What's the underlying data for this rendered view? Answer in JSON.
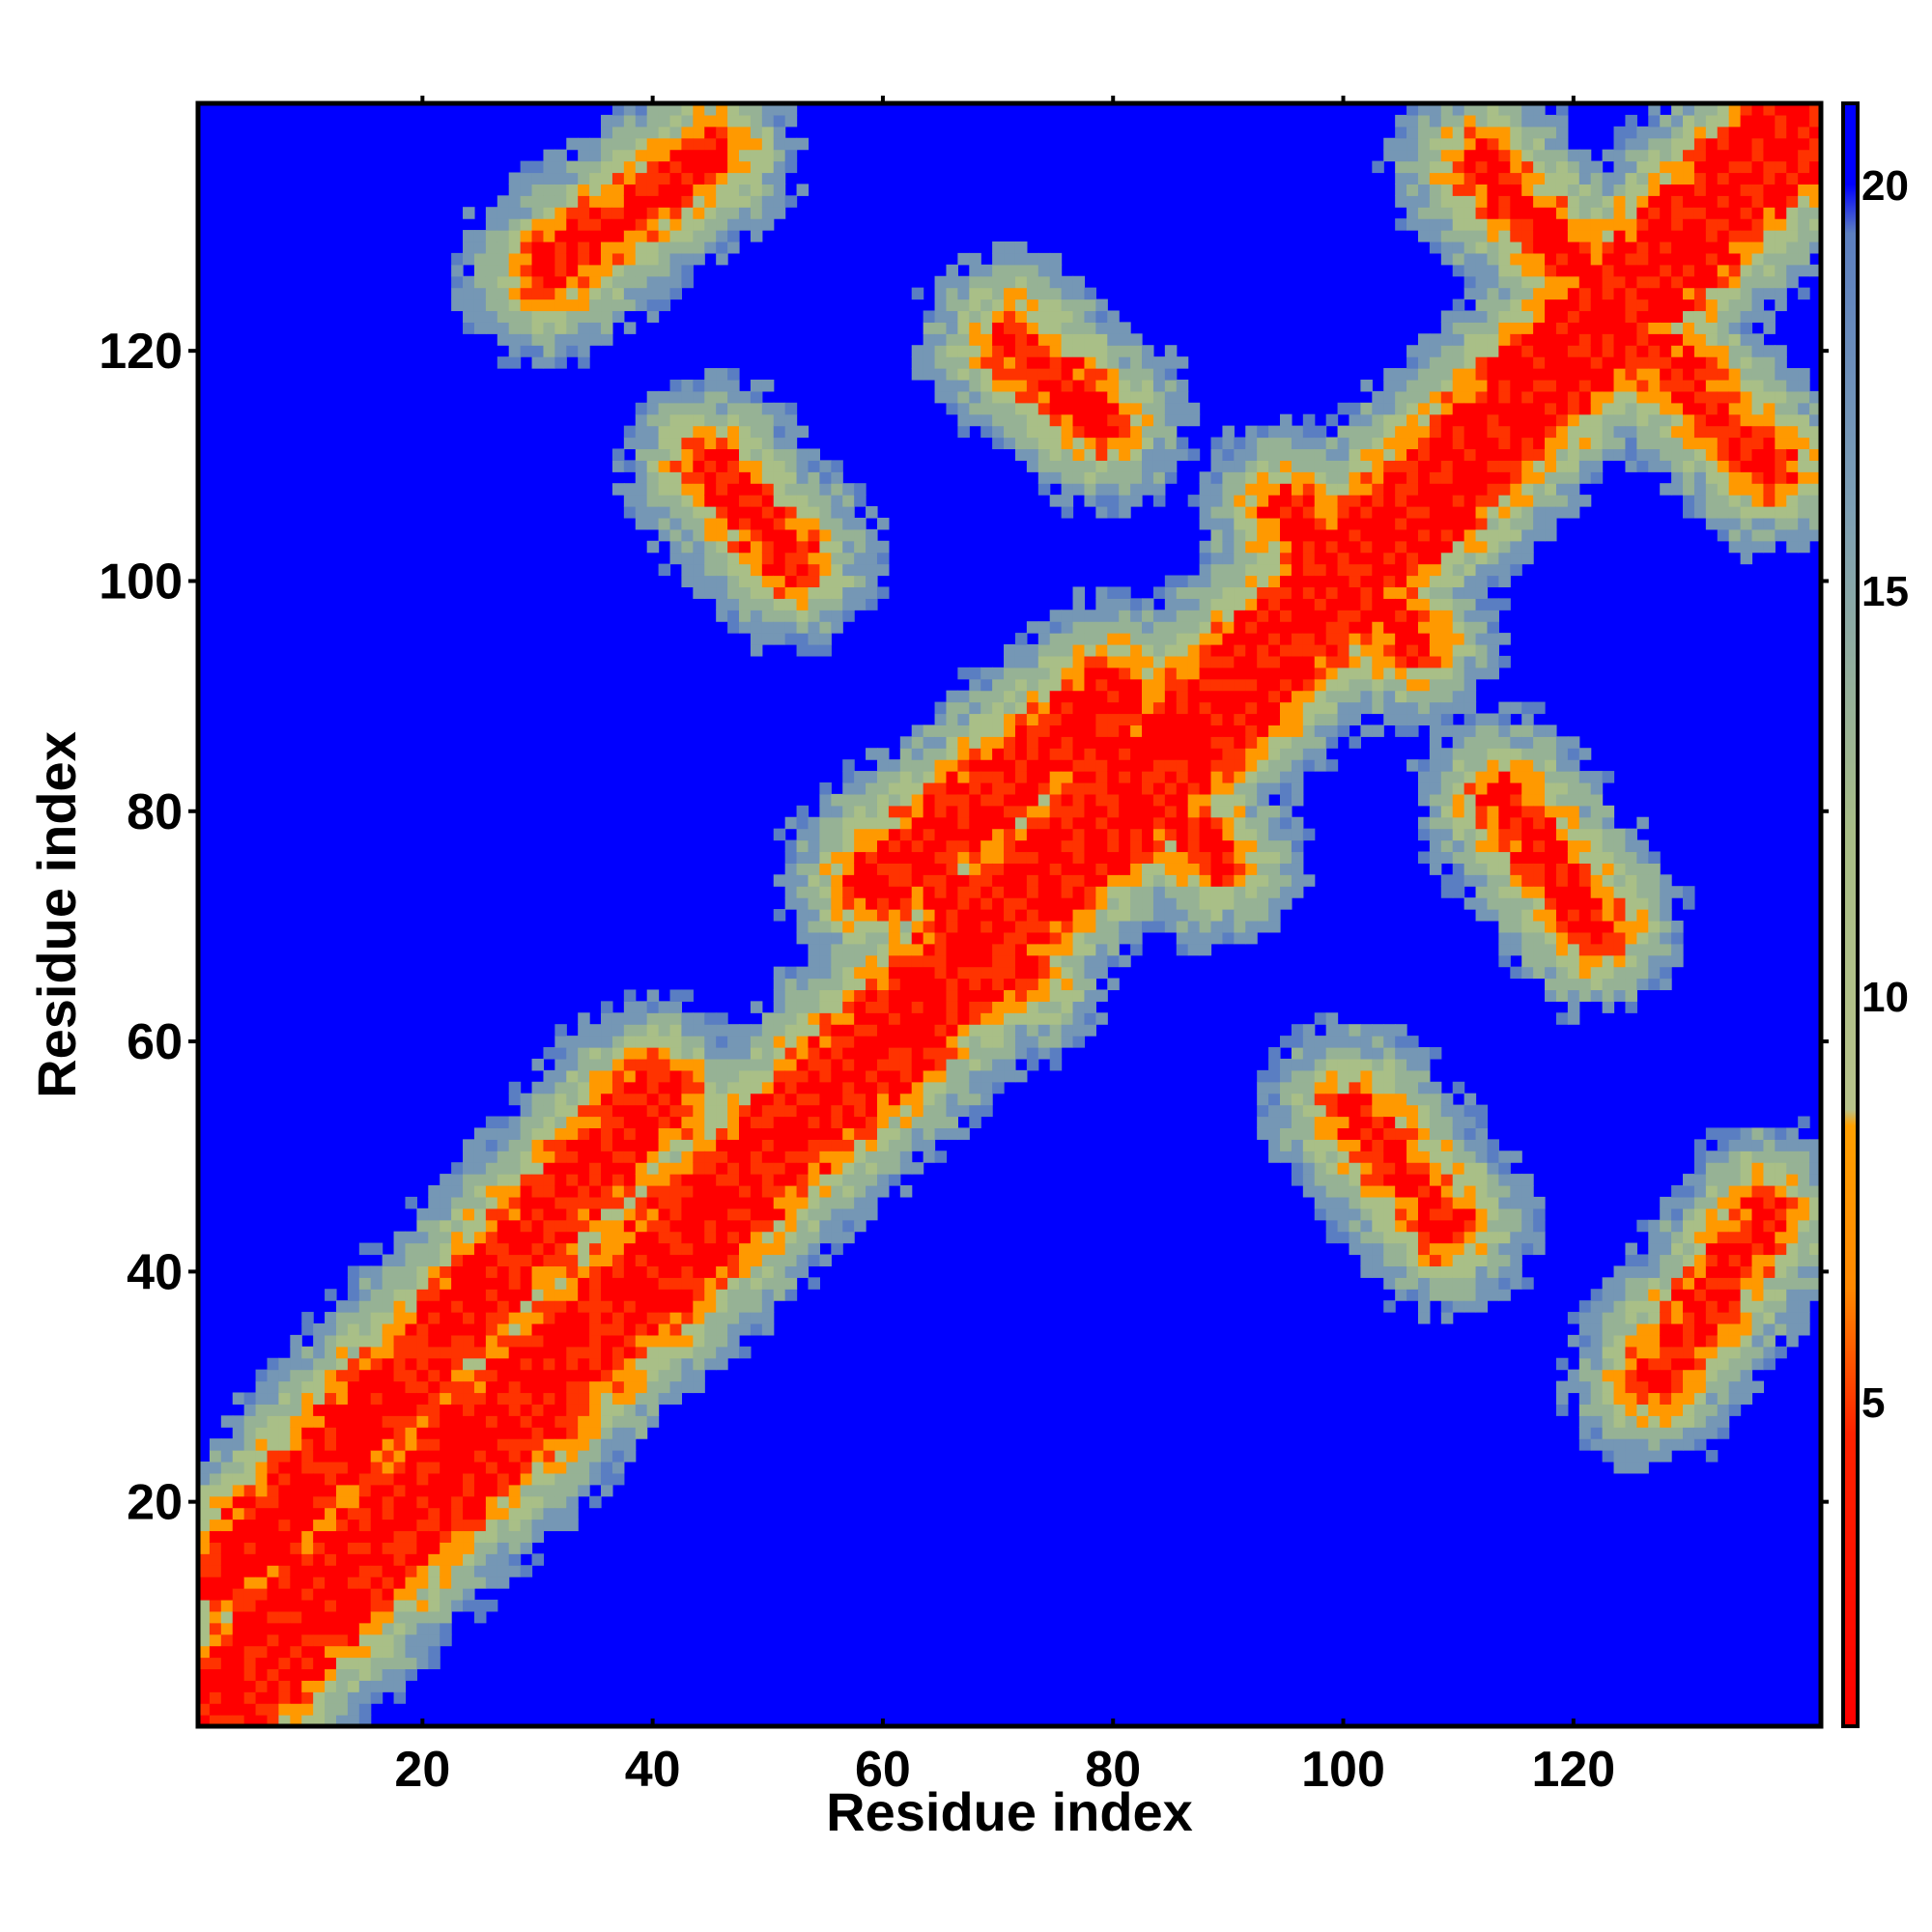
{
  "chart_data": {
    "type": "heatmap",
    "title": "",
    "xlabel": "Residue index",
    "ylabel": "Residue index",
    "xlim": [
      1,
      141
    ],
    "ylim": [
      1,
      141
    ],
    "n_residues": 141,
    "x_ticks": [
      20,
      40,
      60,
      80,
      100,
      120
    ],
    "y_ticks": [
      20,
      40,
      60,
      80,
      100,
      120
    ],
    "colorbar": {
      "ticks": [
        5,
        10,
        15,
        20
      ],
      "range": [
        1,
        21
      ],
      "colors": {
        "min": "#ff0000",
        "mid_low": "#ff9900",
        "mid": "#a8bd86",
        "mid_high": "#6e94b8",
        "max": "#0000ff"
      }
    },
    "grid": false,
    "background_color": "#0000ff",
    "cutoff": 20,
    "description_contacts": [
      {
        "type": "diagonal",
        "width": 3.2
      },
      {
        "type": "band",
        "i0": 3,
        "j0": 14,
        "i1": 40,
        "j1": 55
      },
      {
        "type": "band",
        "i0": 60,
        "j0": 74,
        "i1": 80,
        "j1": 90
      },
      {
        "type": "antiparallel",
        "x0": 52,
        "y0": 102,
        "x1": 45,
        "y1": 110
      },
      {
        "type": "antiparallel",
        "x0": 45,
        "y0": 137,
        "x1": 31,
        "y1": 127
      },
      {
        "type": "antiparallel",
        "x0": 71,
        "y0": 121,
        "x1": 79,
        "y1": 114
      },
      {
        "type": "antiparallel",
        "x0": 95,
        "y0": 106,
        "x1": 106,
        "y1": 95
      },
      {
        "type": "antiparallel",
        "x0": 112,
        "y0": 136,
        "x1": 137,
        "y1": 110
      },
      {
        "type": "antiparallel",
        "x0": 77,
        "y0": 89,
        "x1": 89,
        "y1": 76
      },
      {
        "type": "antiparallel",
        "x0": 114,
        "y0": 81,
        "x1": 122,
        "y1": 70
      },
      {
        "type": "antiparallel",
        "x0": 101,
        "y0": 54,
        "x1": 109,
        "y1": 44
      },
      {
        "type": "antiparallel",
        "x0": 127,
        "y0": 31,
        "x1": 137,
        "y1": 45
      },
      {
        "type": "antiparallel",
        "x0": 65,
        "y0": 73,
        "x1": 72,
        "y1": 66
      }
    ]
  }
}
